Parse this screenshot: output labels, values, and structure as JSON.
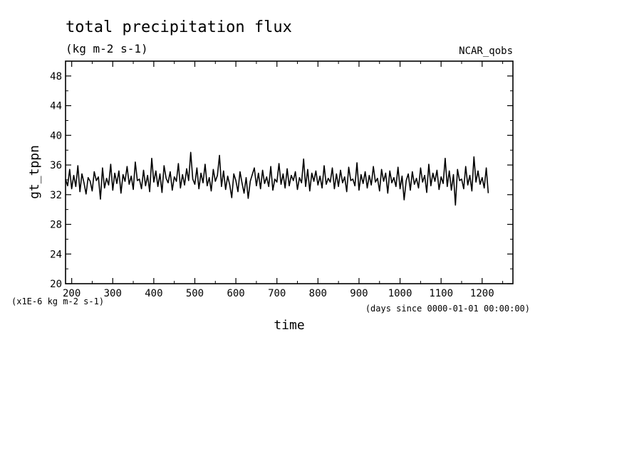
{
  "chart_data": {
    "type": "line",
    "title": "total precipitation flux",
    "subtitle": "(kg m-2 s-1)",
    "source_label": "NCAR_qobs",
    "xlabel": "time",
    "ylabel": "gt_tppn",
    "x_units": "(days since 0000-01-01 00:00:00)",
    "y_units": "(x1E-6 kg m-2 s-1)",
    "xlim": [
      185,
      1275
    ],
    "ylim": [
      20,
      50
    ],
    "x_ticks": [
      200,
      300,
      400,
      500,
      600,
      700,
      800,
      900,
      1000,
      1100,
      1200
    ],
    "y_ticks": [
      20,
      24,
      28,
      32,
      36,
      40,
      44,
      48
    ],
    "grid": false,
    "series": [
      {
        "name": "gt_tppn",
        "x_start": 185,
        "x_step": 5,
        "values": [
          34.1,
          33.2,
          35.4,
          32.8,
          34.6,
          33.1,
          35.9,
          32.4,
          34.8,
          33.6,
          32.1,
          34.3,
          33.8,
          32.5,
          35.1,
          33.9,
          34.4,
          31.4,
          35.6,
          32.9,
          34.2,
          33.3,
          36.1,
          32.6,
          34.9,
          33.5,
          35.2,
          32.2,
          34.7,
          33.8,
          35.8,
          33.4,
          34.5,
          32.7,
          36.4,
          33.9,
          34.1,
          32.8,
          35.3,
          33.2,
          34.6,
          32.4,
          36.9,
          33.7,
          35.2,
          33.1,
          34.8,
          32.3,
          35.9,
          34.2,
          33.6,
          35.1,
          32.6,
          34.4,
          33.8,
          36.2,
          32.9,
          34.7,
          33.3,
          35.5,
          33.9,
          37.7,
          34.1,
          33.4,
          35.6,
          32.8,
          34.9,
          33.6,
          36.1,
          33.2,
          34.3,
          32.5,
          35.4,
          33.8,
          34.6,
          37.3,
          33.1,
          35.2,
          32.7,
          34.5,
          33.3,
          31.6,
          34.8,
          33.9,
          32.4,
          35.1,
          33.6,
          32.2,
          34.3,
          31.5,
          33.8,
          34.7,
          35.6,
          33.2,
          34.9,
          32.8,
          35.3,
          33.5,
          34.4,
          33.1,
          35.8,
          32.6,
          34.1,
          33.7,
          36.2,
          33.4,
          34.8,
          32.9,
          35.5,
          33.2,
          34.6,
          33.9,
          35.1,
          32.7,
          34.3,
          33.6,
          36.8,
          33.1,
          35.4,
          32.5,
          34.9,
          33.8,
          35.2,
          33.3,
          34.5,
          32.9,
          35.9,
          33.4,
          34.2,
          33.7,
          35.6,
          32.8,
          34.8,
          33.1,
          35.3,
          33.6,
          34.4,
          32.4,
          35.7,
          33.9,
          34.1,
          33.2,
          36.3,
          32.6,
          34.7,
          33.5,
          35.1,
          32.9,
          34.6,
          33.3,
          35.8,
          33.7,
          34.2,
          32.5,
          35.4,
          33.8,
          34.9,
          32.2,
          35.2,
          33.6,
          34.3,
          33.1,
          35.7,
          32.8,
          34.5,
          31.3,
          33.9,
          34.8,
          32.6,
          35.1,
          33.4,
          34.2,
          32.9,
          35.6,
          33.7,
          34.6,
          32.3,
          36.1,
          33.2,
          34.9,
          33.8,
          35.3,
          32.7,
          34.4,
          33.5,
          36.9,
          33.1,
          35.2,
          32.6,
          34.7,
          30.6,
          35.4,
          33.9,
          34.1,
          32.8,
          35.8,
          33.3,
          34.6,
          32.5,
          37.1,
          33.7,
          35.2,
          33.4,
          34.3,
          32.9,
          35.6,
          32.2
        ]
      }
    ]
  }
}
